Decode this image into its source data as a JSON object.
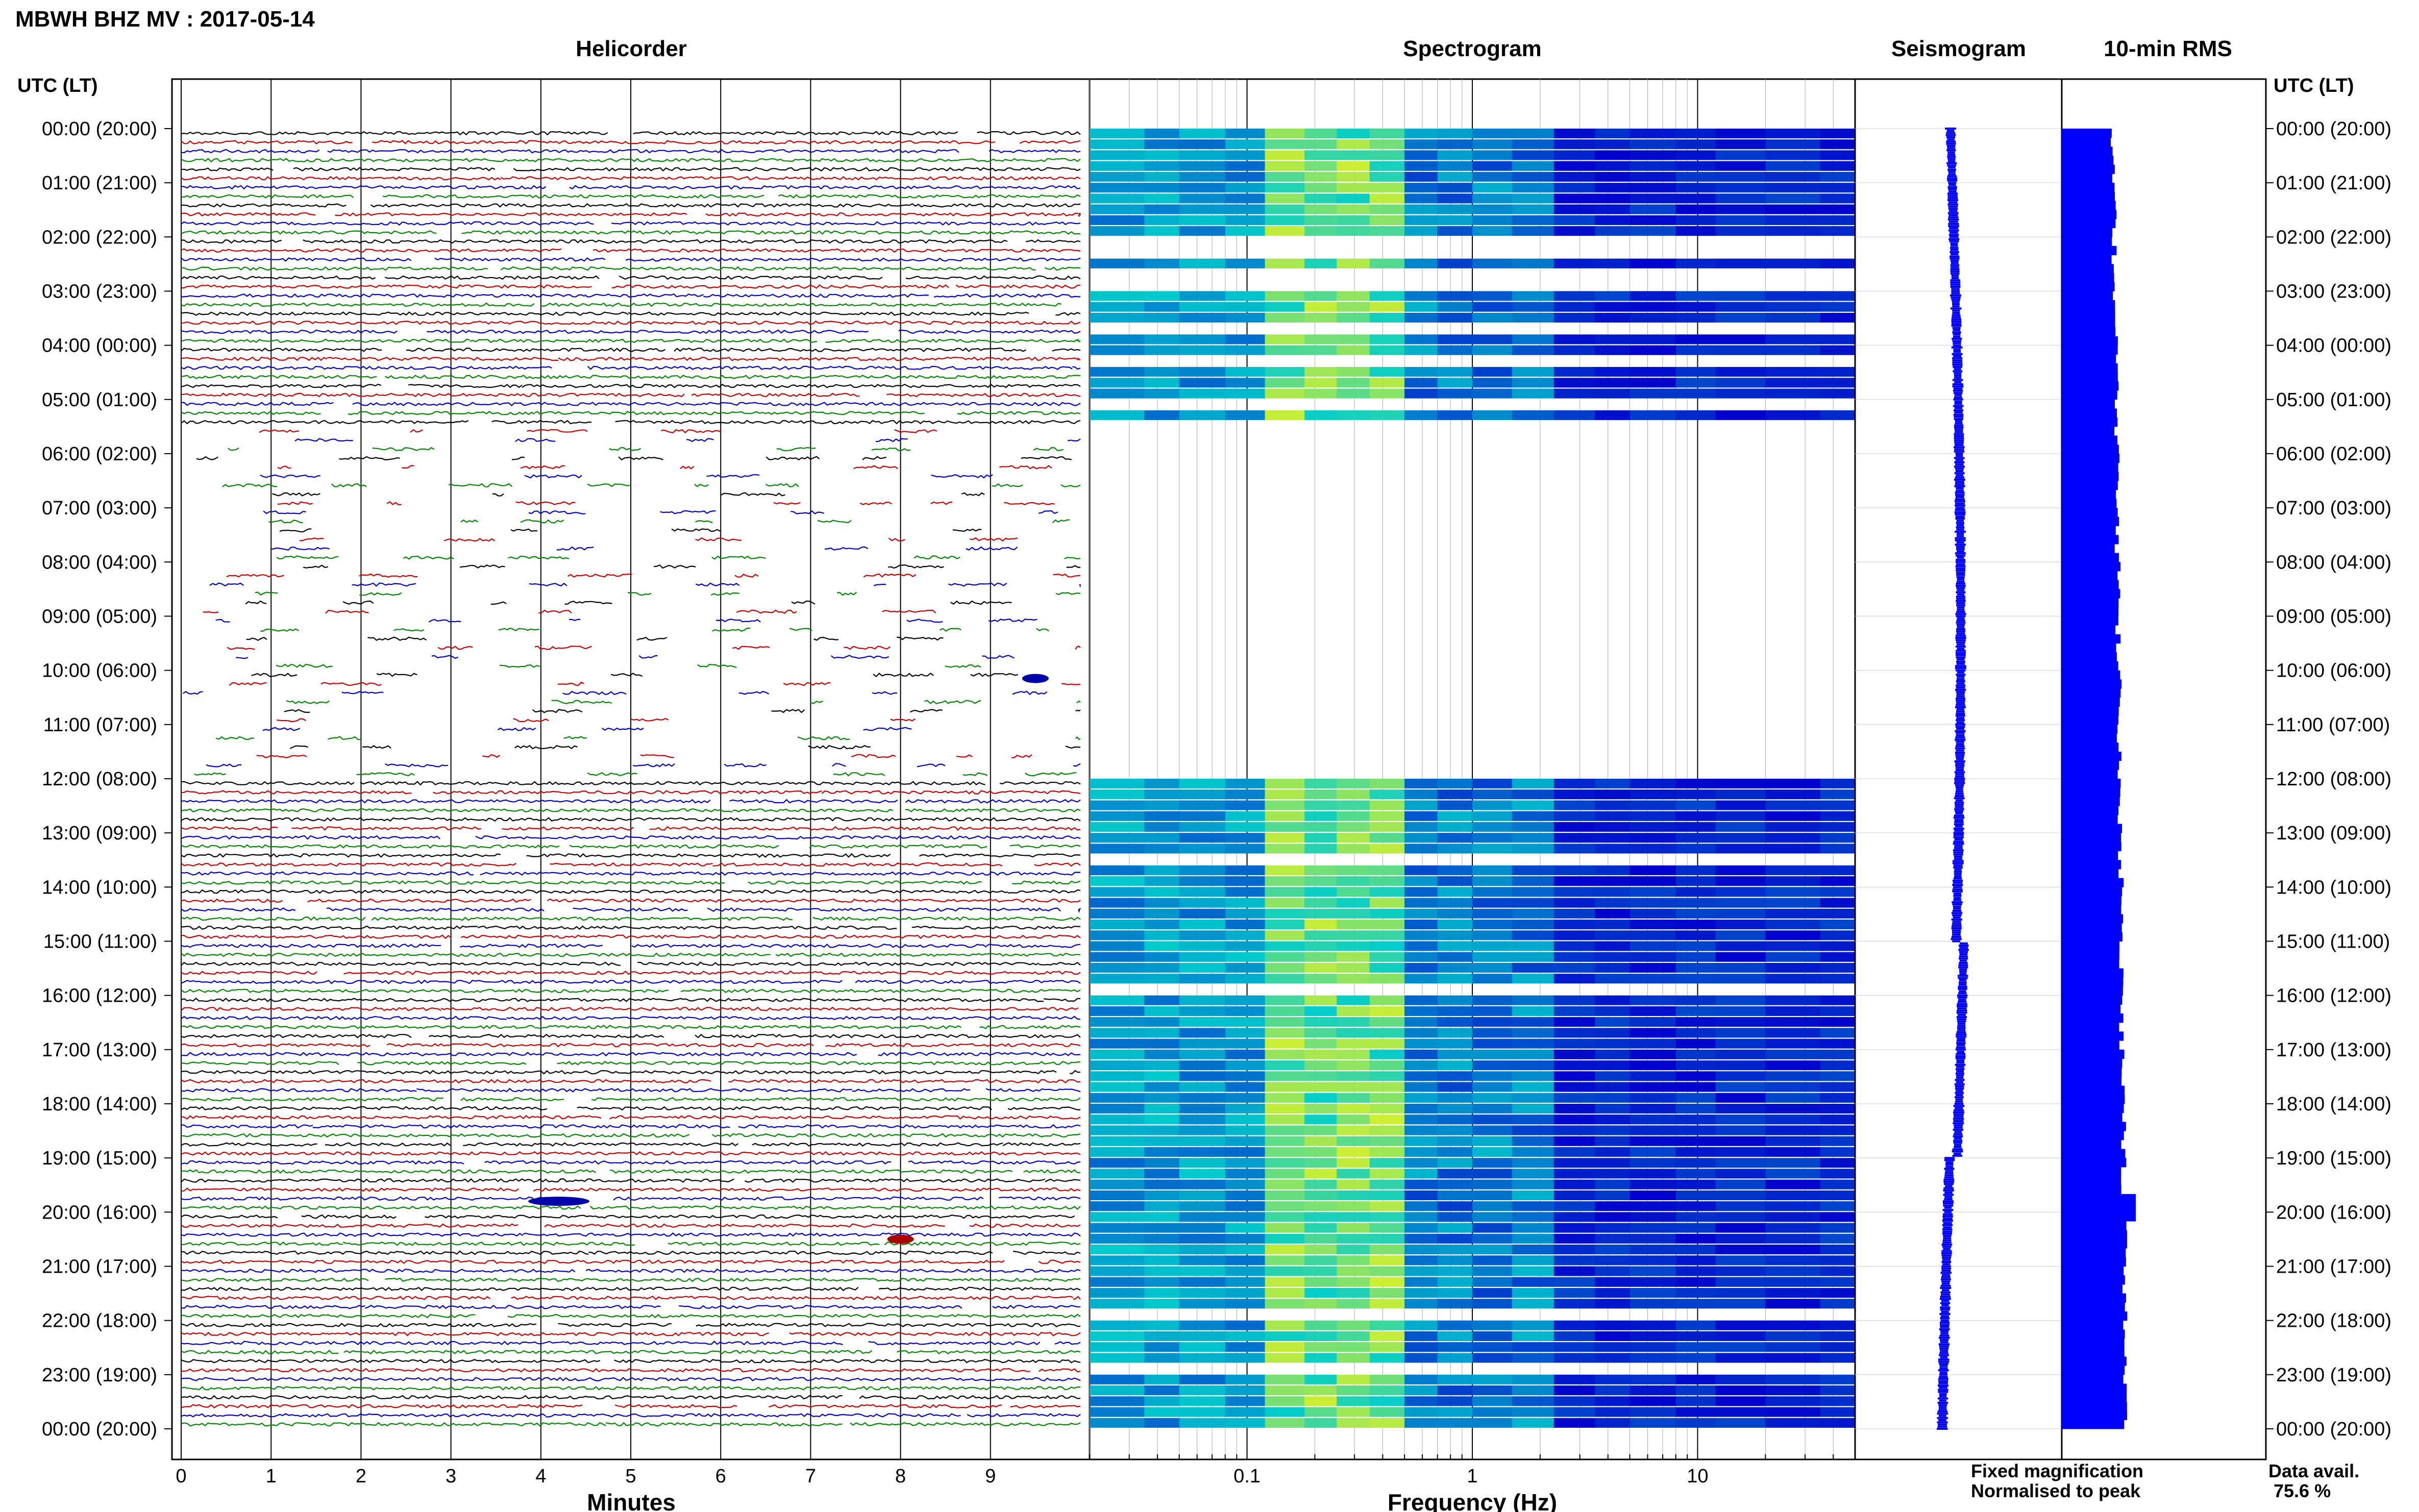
{
  "header": {
    "title": "MBWH BHZ MV : 2017-05-14"
  },
  "panels": {
    "helicorder_title": "Helicorder",
    "spectrogram_title": "Spectrogram",
    "seismogram_title": "Seismogram",
    "rms_title": "10-min RMS"
  },
  "axes": {
    "left_header": "UTC (LT)",
    "right_header": "UTC (LT)",
    "helicorder_xlabel": "Minutes",
    "spectrogram_xlabel": "Frequency (Hz)"
  },
  "footer": {
    "fixed_magnification": "Fixed magnification",
    "normalised_to_peak": "Normalised to peak",
    "data_avail_label": "Data avail.",
    "data_avail_value": "75.6 %"
  },
  "colors": {
    "trace_cycle": [
      "#000000",
      "#cc0000",
      "#0000cc",
      "#008800"
    ],
    "spectrogram_low": "#0000cc",
    "spectrogram_mid": "#00cccc",
    "spectrogram_high": "#ccee33",
    "fixed_magnification": "#0000ff",
    "normalised_to_peak": "#ff0000",
    "rms_fill": "#0000ff"
  },
  "chart_data": [
    {
      "type": "line",
      "title": "Helicorder",
      "xlabel": "Minutes",
      "x_ticks": [
        "0",
        "1",
        "2",
        "3",
        "4",
        "5",
        "6",
        "7",
        "8",
        "9"
      ],
      "xlim": [
        0,
        10
      ],
      "y_ticks": [
        "00:00 (20:00)",
        "01:00 (21:00)",
        "02:00 (22:00)",
        "03:00 (23:00)",
        "04:00 (00:00)",
        "05:00 (01:00)",
        "06:00 (02:00)",
        "07:00 (03:00)",
        "08:00 (04:00)",
        "09:00 (05:00)",
        "10:00 (06:00)",
        "11:00 (07:00)",
        "12:00 (08:00)",
        "13:00 (09:00)",
        "14:00 (10:00)",
        "15:00 (11:00)",
        "16:00 (12:00)",
        "17:00 (13:00)",
        "18:00 (14:00)",
        "19:00 (15:00)",
        "20:00 (16:00)",
        "21:00 (17:00)",
        "22:00 (18:00)",
        "23:00 (19:00)",
        "00:00 (20:00)"
      ],
      "rows": 144,
      "minutes_per_row": 10,
      "sparse_data_hours": [
        5.5,
        12.0
      ],
      "events": [
        {
          "time_hours": 19.8,
          "minute": 4.2,
          "color": "blue"
        },
        {
          "time_hours": 20.5,
          "minute": 8.0,
          "color": "red"
        },
        {
          "time_hours": 10.15,
          "minute": 9.5,
          "color": "blue"
        }
      ]
    },
    {
      "type": "heatmap",
      "title": "Spectrogram",
      "xlabel": "Frequency (Hz)",
      "x_scale": "log",
      "xlim": [
        0.02,
        50
      ],
      "x_ticks": [
        "0.1",
        "1",
        "10"
      ],
      "gap_hours": [
        5.4,
        12.0
      ],
      "colormap": [
        "#0000cc",
        "#00cccc",
        "#ccee33"
      ]
    },
    {
      "type": "line",
      "title": "Seismogram",
      "series_color": "#0000ff"
    },
    {
      "type": "bar",
      "title": "10-min RMS",
      "orientation": "horizontal",
      "series_color": "#0000ff",
      "spike_hours": [
        19.9
      ]
    }
  ]
}
